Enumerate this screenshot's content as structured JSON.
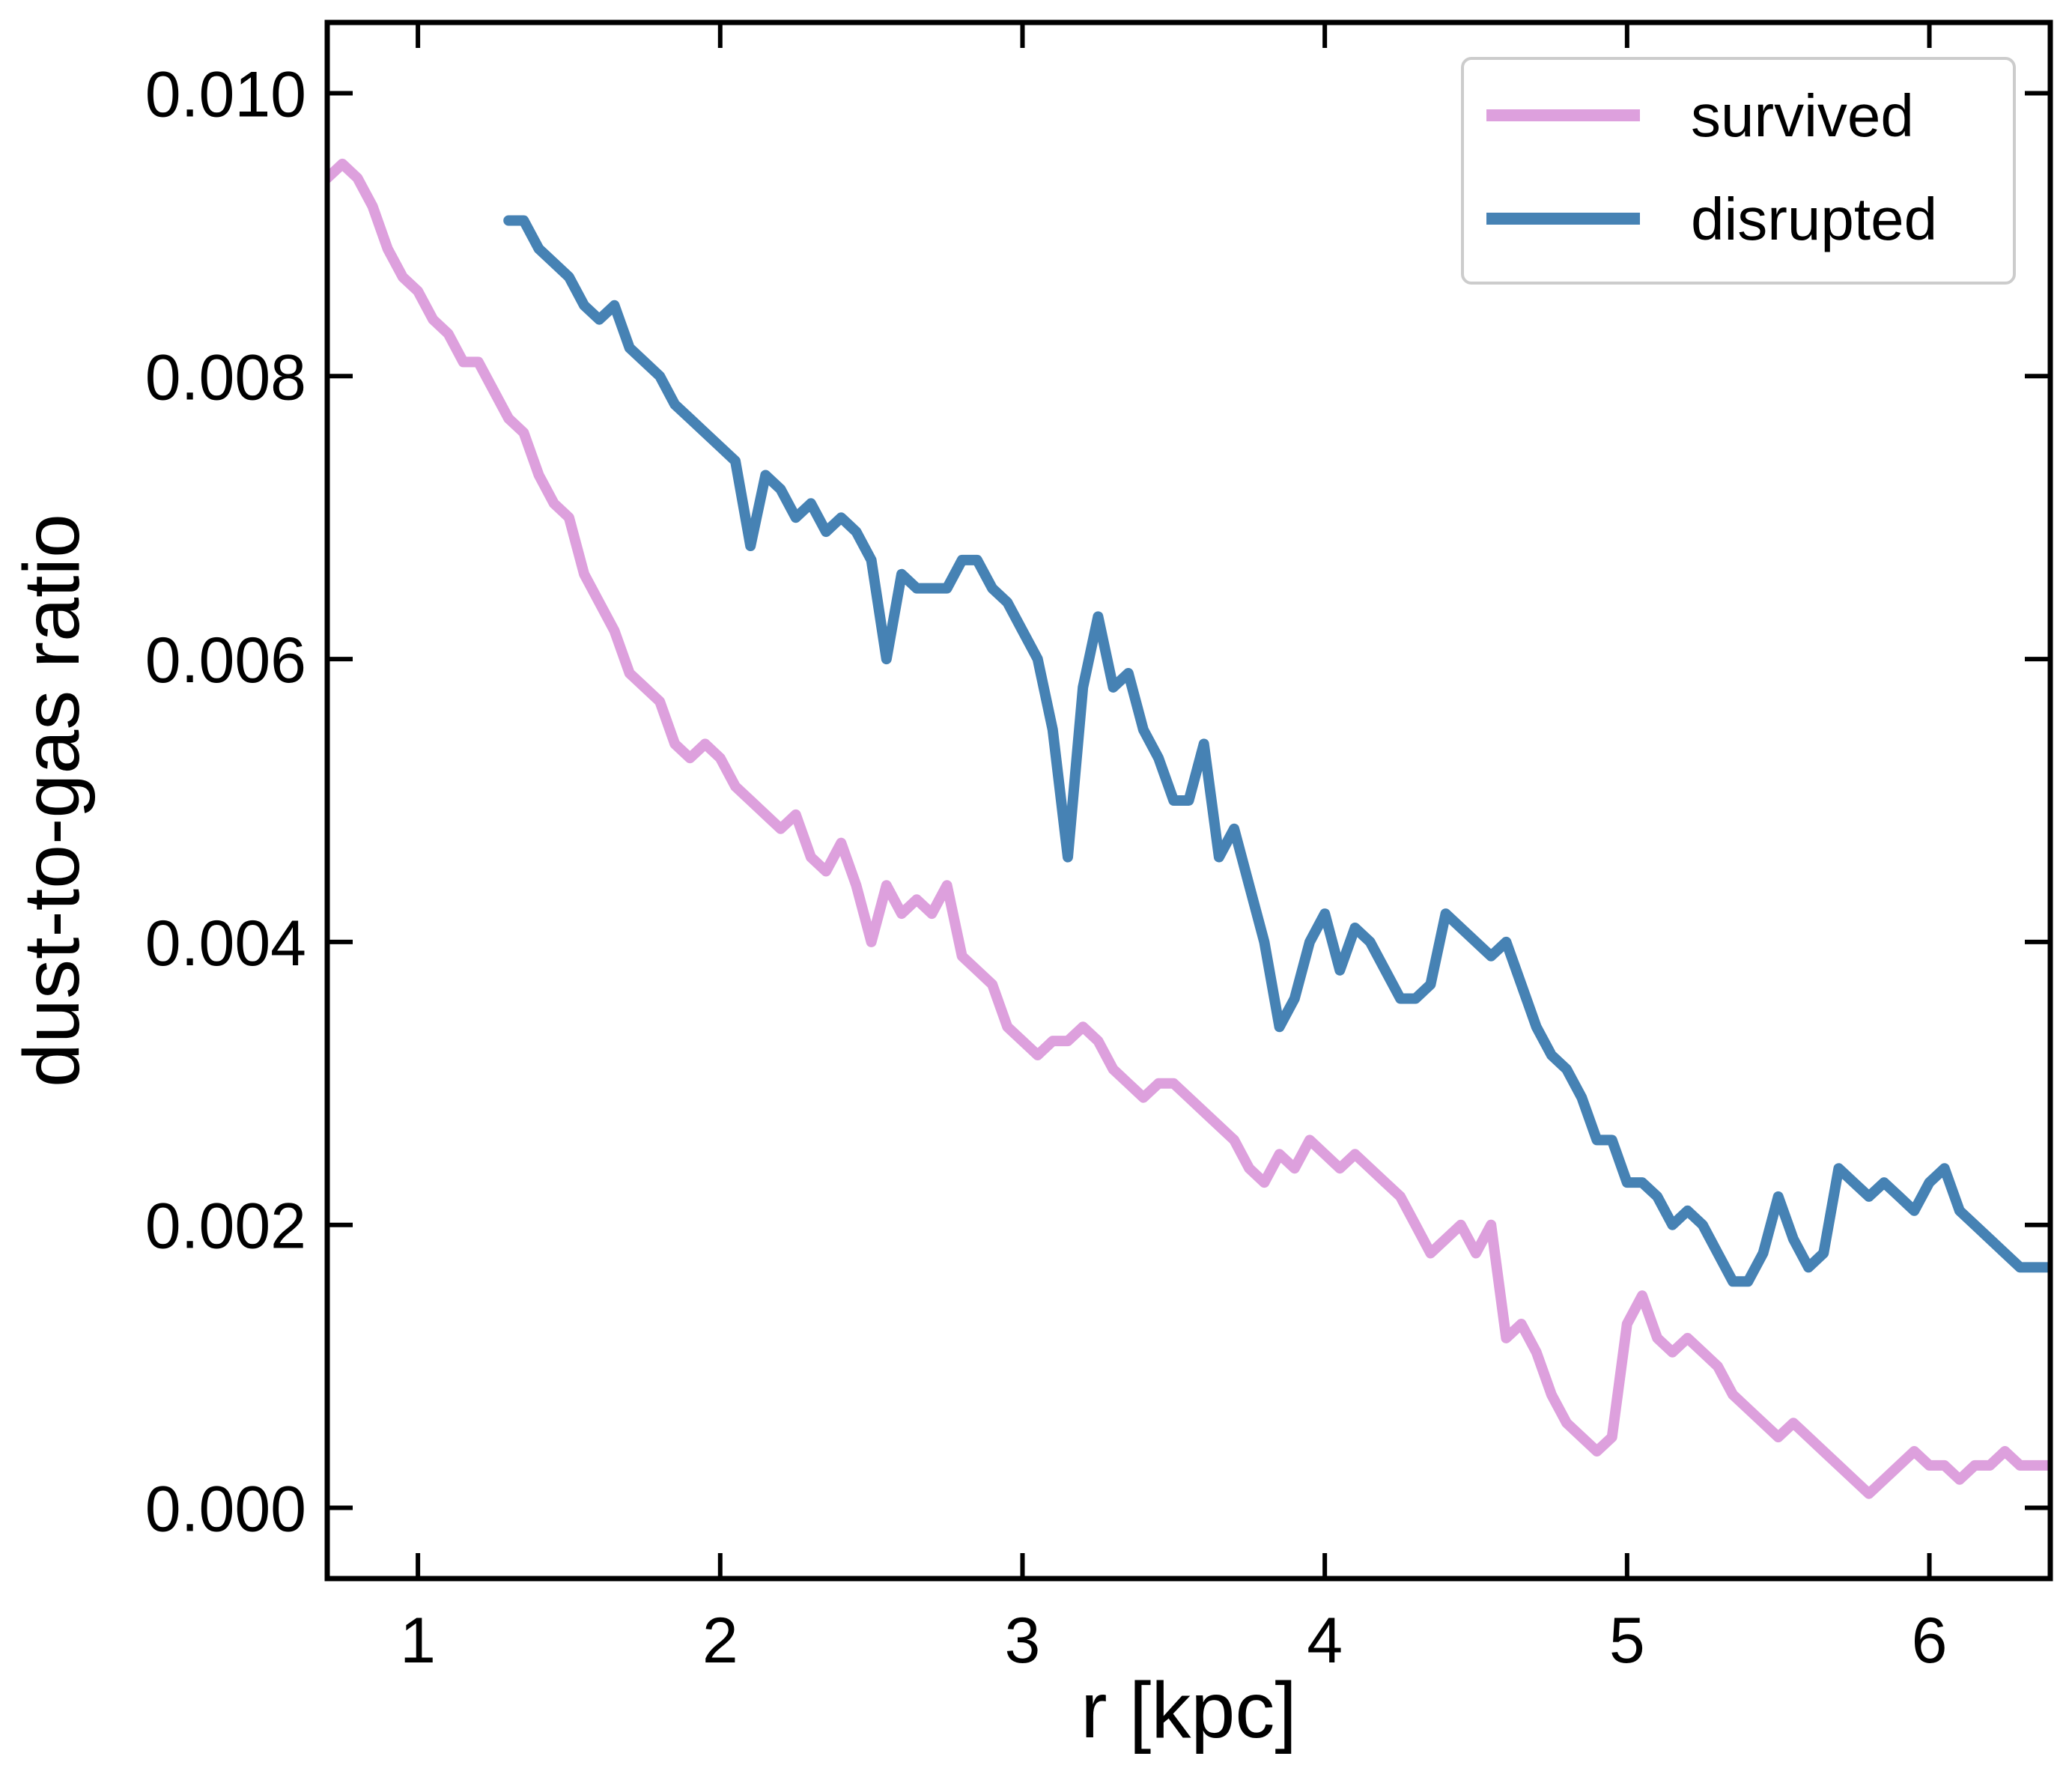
{
  "chart_data": {
    "type": "line",
    "xlabel": "r [kpc]",
    "ylabel": "dust-to-gas ratio",
    "xlim": [
      0.7,
      6.4
    ],
    "ylim": [
      -0.0005,
      0.0105
    ],
    "xticks": [
      1,
      2,
      3,
      4,
      5,
      6
    ],
    "xtick_labels": [
      "1",
      "2",
      "3",
      "4",
      "5",
      "6"
    ],
    "yticks": [
      0.0,
      0.002,
      0.004,
      0.006,
      0.008,
      0.01
    ],
    "ytick_labels": [
      "0.000",
      "0.002",
      "0.004",
      "0.006",
      "0.008",
      "0.010"
    ],
    "grid": false,
    "legend_position": "top-right",
    "series": [
      {
        "name": "survived",
        "color": "#dda0dd",
        "x": [
          0.7,
          0.75,
          0.8,
          0.85,
          0.9,
          0.95,
          1.0,
          1.05,
          1.1,
          1.15,
          1.2,
          1.25,
          1.3,
          1.35,
          1.4,
          1.45,
          1.5,
          1.55,
          1.6,
          1.65,
          1.7,
          1.75,
          1.8,
          1.85,
          1.9,
          1.95,
          2.0,
          2.05,
          2.1,
          2.15,
          2.2,
          2.25,
          2.3,
          2.35,
          2.4,
          2.45,
          2.5,
          2.55,
          2.6,
          2.65,
          2.7,
          2.75,
          2.8,
          2.85,
          2.9,
          2.95,
          3.0,
          3.05,
          3.1,
          3.15,
          3.2,
          3.25,
          3.3,
          3.35,
          3.4,
          3.45,
          3.5,
          3.55,
          3.6,
          3.65,
          3.7,
          3.75,
          3.8,
          3.85,
          3.9,
          3.95,
          4.0,
          4.05,
          4.1,
          4.15,
          4.2,
          4.25,
          4.3,
          4.35,
          4.4,
          4.45,
          4.5,
          4.55,
          4.6,
          4.65,
          4.7,
          4.75,
          4.8,
          4.85,
          4.9,
          4.95,
          5.0,
          5.05,
          5.1,
          5.15,
          5.2,
          5.25,
          5.3,
          5.35,
          5.4,
          5.45,
          5.5,
          5.55,
          5.6,
          5.65,
          5.7,
          5.75,
          5.8,
          5.85,
          5.9,
          5.95,
          6.0,
          6.05,
          6.1,
          6.15,
          6.2,
          6.25,
          6.3,
          6.35,
          6.4
        ],
        "y": [
          0.0094,
          0.0095,
          0.0094,
          0.0092,
          0.0089,
          0.0087,
          0.0086,
          0.0084,
          0.0083,
          0.0081,
          0.0081,
          0.0079,
          0.0077,
          0.0076,
          0.0073,
          0.0071,
          0.007,
          0.0066,
          0.0064,
          0.0062,
          0.0059,
          0.0058,
          0.0057,
          0.0054,
          0.0053,
          0.0054,
          0.0053,
          0.0051,
          0.005,
          0.0049,
          0.0048,
          0.0049,
          0.0046,
          0.0045,
          0.0047,
          0.0044,
          0.004,
          0.0044,
          0.0042,
          0.0043,
          0.0042,
          0.0044,
          0.0039,
          0.0038,
          0.0037,
          0.0034,
          0.0033,
          0.0032,
          0.0033,
          0.0033,
          0.0034,
          0.0033,
          0.0031,
          0.003,
          0.0029,
          0.003,
          0.003,
          0.0029,
          0.0028,
          0.0027,
          0.0026,
          0.0024,
          0.0023,
          0.0025,
          0.0024,
          0.0026,
          0.0025,
          0.0024,
          0.0025,
          0.0024,
          0.0023,
          0.0022,
          0.002,
          0.0018,
          0.0019,
          0.002,
          0.0018,
          0.002,
          0.0012,
          0.0013,
          0.0011,
          0.0008,
          0.0006,
          0.0005,
          0.0004,
          0.0005,
          0.0013,
          0.0015,
          0.0012,
          0.0011,
          0.0012,
          0.0011,
          0.001,
          0.0008,
          0.0007,
          0.0006,
          0.0005,
          0.0006,
          0.0005,
          0.0004,
          0.0003,
          0.0002,
          0.0001,
          0.0002,
          0.0003,
          0.0004,
          0.0003,
          0.0003,
          0.0002,
          0.0003,
          0.0003,
          0.0004,
          0.0003,
          0.0003,
          0.0003
        ]
      },
      {
        "name": "disrupted",
        "color": "#4682b4",
        "x": [
          1.3,
          1.35,
          1.4,
          1.45,
          1.5,
          1.55,
          1.6,
          1.65,
          1.7,
          1.75,
          1.8,
          1.85,
          1.9,
          1.95,
          2.0,
          2.05,
          2.1,
          2.15,
          2.2,
          2.25,
          2.3,
          2.35,
          2.4,
          2.45,
          2.5,
          2.55,
          2.6,
          2.65,
          2.7,
          2.75,
          2.8,
          2.85,
          2.9,
          2.95,
          3.0,
          3.05,
          3.1,
          3.15,
          3.2,
          3.25,
          3.3,
          3.35,
          3.4,
          3.45,
          3.5,
          3.55,
          3.6,
          3.65,
          3.7,
          3.75,
          3.8,
          3.85,
          3.9,
          3.95,
          4.0,
          4.05,
          4.1,
          4.15,
          4.2,
          4.25,
          4.3,
          4.35,
          4.4,
          4.45,
          4.5,
          4.55,
          4.6,
          4.65,
          4.7,
          4.75,
          4.8,
          4.85,
          4.9,
          4.95,
          5.0,
          5.05,
          5.1,
          5.15,
          5.2,
          5.25,
          5.3,
          5.35,
          5.4,
          5.45,
          5.5,
          5.55,
          5.6,
          5.65,
          5.7,
          5.75,
          5.8,
          5.85,
          5.9,
          5.95,
          6.0,
          6.05,
          6.1,
          6.15,
          6.2,
          6.25,
          6.3,
          6.35,
          6.4
        ],
        "y": [
          0.0091,
          0.0091,
          0.0089,
          0.0088,
          0.0087,
          0.0085,
          0.0084,
          0.0085,
          0.0082,
          0.0081,
          0.008,
          0.0078,
          0.0077,
          0.0076,
          0.0075,
          0.0074,
          0.0068,
          0.0073,
          0.0072,
          0.007,
          0.0071,
          0.0069,
          0.007,
          0.0069,
          0.0067,
          0.006,
          0.0066,
          0.0065,
          0.0065,
          0.0065,
          0.0067,
          0.0067,
          0.0065,
          0.0064,
          0.0062,
          0.006,
          0.0055,
          0.0046,
          0.0058,
          0.0063,
          0.0058,
          0.0059,
          0.0055,
          0.0053,
          0.005,
          0.005,
          0.0054,
          0.0046,
          0.0048,
          0.0044,
          0.004,
          0.0034,
          0.0036,
          0.004,
          0.0042,
          0.0038,
          0.0041,
          0.004,
          0.0038,
          0.0036,
          0.0036,
          0.0037,
          0.0042,
          0.0041,
          0.004,
          0.0039,
          0.004,
          0.0037,
          0.0034,
          0.0032,
          0.0031,
          0.0029,
          0.0026,
          0.0026,
          0.0023,
          0.0023,
          0.0022,
          0.002,
          0.0021,
          0.002,
          0.0018,
          0.0016,
          0.0016,
          0.0018,
          0.0022,
          0.0019,
          0.0017,
          0.0018,
          0.0024,
          0.0023,
          0.0022,
          0.0023,
          0.0022,
          0.0021,
          0.0023,
          0.0024,
          0.0021,
          0.002,
          0.0019,
          0.0018,
          0.0017,
          0.0017,
          0.0017
        ]
      }
    ]
  }
}
